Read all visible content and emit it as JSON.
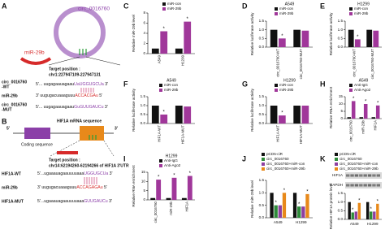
{
  "diagram_a": {
    "label": "A",
    "circ_name": "circ_0016760",
    "mirna": "miR-29b",
    "target_title": "Target position :",
    "target_pos": "chr1:227947109-227947131",
    "rows": [
      {
        "name": [
          "circ_0016760",
          "-WT"
        ],
        "seq": [
          "5'... uugagaauagaau",
          "UaUGGUGCUa",
          " 3'"
        ]
      },
      {
        "name": [
          "miR-29b"
        ],
        "seq": [
          "3' uugugacuaaaguuu",
          "ACCACGAu",
          " 5'"
        ]
      },
      {
        "name": [
          "circ_0016760",
          "-MUT"
        ],
        "seq": [
          "5'... uugagaauagaau",
          "GuGUUGAUCu",
          " 3'"
        ]
      }
    ]
  },
  "diagram_b": {
    "label": "B",
    "title": "HIF1A mRNA sequence",
    "five": "5'",
    "three": "3'",
    "coding": "Coding sequence",
    "target_title": "Target position :",
    "target_pos": "chr14:62194260-62194266 of HIF1A 3'UTR",
    "rows": [
      {
        "name": [
          "HIF1A-WT"
        ],
        "seq": [
          "5'...ugaaauagaauuuuaaa",
          "UGGUGCUa",
          " 3'"
        ]
      },
      {
        "name": [
          "miR-29b"
        ],
        "seq": [
          "3' uugugacuaaaguuu",
          "ACCAGAGAu",
          " 5'"
        ]
      },
      {
        "name": [
          "HIF1A-MUT"
        ],
        "seq": [
          "5'...ugaaauagaauuuuaaa",
          "GUUGAUCu",
          " 3'"
        ]
      }
    ]
  },
  "chart_data": [
    {
      "type": "bar",
      "label": "C",
      "ylabel": "Relative miR-29b level",
      "categories": [
        "A549",
        "H1299"
      ],
      "series": [
        {
          "name": "miR-con",
          "color": "#111111",
          "values": [
            1,
            1
          ],
          "significance": [
            null,
            null
          ]
        },
        {
          "name": "miR-29b",
          "color": "#a0379a",
          "values": [
            4.4,
            6.3
          ],
          "significance": [
            "*",
            "*"
          ]
        }
      ],
      "ylim": [
        0,
        8
      ],
      "yticks": [
        0,
        2,
        4,
        6,
        8
      ]
    },
    {
      "type": "bar",
      "label": "D",
      "title": "A549",
      "ylabel": "Relative luciferase activity",
      "categories": [
        "circ_0016760-WT",
        "circ_0016760-MUT"
      ],
      "series": [
        {
          "name": "miR-con",
          "color": "#111111",
          "values": [
            1,
            1
          ],
          "significance": [
            null,
            null
          ]
        },
        {
          "name": "miR-29b",
          "color": "#a0379a",
          "values": [
            0.5,
            0.95
          ],
          "significance": [
            "*",
            null
          ]
        }
      ],
      "ylim": [
        0,
        1.5
      ],
      "yticks": [
        {
          "value": 0,
          "label": "0.0"
        },
        0.5,
        {
          "value": 1,
          "label": "1.0"
        },
        1.5
      ]
    },
    {
      "type": "bar",
      "label": "E",
      "title": "H1299",
      "ylabel": "Relative luciferase activity",
      "categories": [
        "circ_0016760-WT",
        "circ_0016760-MUT"
      ],
      "series": [
        {
          "name": "miR-con",
          "color": "#111111",
          "values": [
            1,
            1
          ],
          "significance": [
            null,
            null
          ]
        },
        {
          "name": "miR-29b",
          "color": "#a0379a",
          "values": [
            0.45,
            0.95
          ],
          "significance": [
            "*",
            null
          ]
        }
      ],
      "ylim": [
        0,
        1.5
      ],
      "yticks": [
        {
          "value": 0,
          "label": "0.0"
        },
        0.5,
        {
          "value": 1,
          "label": "1.0"
        },
        1.5
      ]
    },
    {
      "type": "bar",
      "label": "F",
      "title": "A549",
      "ylabel": "Relative luciferase activity",
      "categories": [
        "HIF1A-WT",
        "HIF1A-MUT"
      ],
      "series": [
        {
          "name": "miR-con",
          "color": "#111111",
          "values": [
            1,
            1
          ],
          "significance": [
            null,
            null
          ]
        },
        {
          "name": "miR-29b",
          "color": "#a0379a",
          "values": [
            0.5,
            0.95
          ],
          "significance": [
            "*",
            null
          ]
        }
      ],
      "ylim": [
        0,
        1.5
      ],
      "yticks": [
        {
          "value": 0,
          "label": "0.0"
        },
        0.5,
        {
          "value": 1,
          "label": "1.0"
        },
        1.5
      ]
    },
    {
      "type": "bar",
      "label": "G",
      "title": "H1299",
      "ylabel": "Relative luciferase activity",
      "categories": [
        "HIF1A-WT",
        "HIF1A-MUT"
      ],
      "series": [
        {
          "name": "miR-con",
          "color": "#111111",
          "values": [
            1,
            1
          ],
          "significance": [
            null,
            null
          ]
        },
        {
          "name": "miR-29b",
          "color": "#a0379a",
          "values": [
            0.45,
            1
          ],
          "significance": [
            "*",
            null
          ]
        }
      ],
      "ylim": [
        0,
        1.5
      ],
      "yticks": [
        {
          "value": 0,
          "label": "0.0"
        },
        0.5,
        {
          "value": 1,
          "label": "1.0"
        },
        1.5
      ]
    },
    {
      "type": "bar",
      "label": "H",
      "title": "A549",
      "ylabel": "Relative RNA enrichment",
      "categories": [
        "circ_0016760",
        "miR-29b",
        "HIF1A"
      ],
      "series": [
        {
          "name": "Anti-IgG",
          "color": "#111111",
          "values": [
            1,
            1,
            1
          ],
          "significance": [
            null,
            null,
            null
          ]
        },
        {
          "name": "Anti-Ago2",
          "color": "#a0379a",
          "values": [
            12,
            10,
            9
          ],
          "significance": [
            "*",
            "*",
            "*"
          ]
        }
      ],
      "ylim": [
        0,
        15
      ],
      "yticks": [
        0,
        5,
        10,
        15
      ]
    },
    {
      "type": "bar",
      "label": "I",
      "title": "H1299",
      "ylabel": "Relative RNA enrichment",
      "categories": [
        "circ_0016760",
        "miR-29b",
        "HIF1A"
      ],
      "series": [
        {
          "name": "Anti-IgG",
          "color": "#111111",
          "values": [
            1,
            1,
            1
          ],
          "significance": [
            null,
            null,
            null
          ]
        },
        {
          "name": "Anti-Ago2",
          "color": "#a0379a",
          "values": [
            11,
            12,
            13
          ],
          "significance": [
            "*",
            "*",
            "*"
          ]
        }
      ],
      "ylim": [
        0,
        15
      ],
      "yticks": [
        0,
        5,
        10,
        15
      ]
    },
    {
      "type": "bar",
      "label": "J",
      "ylabel": "Relative miR-29b level",
      "categories": [
        "A549",
        "H1299"
      ],
      "series": [
        {
          "name": "pCD5-ciR",
          "color": "#111111",
          "values": [
            1,
            1
          ],
          "significance": [
            null,
            null
          ]
        },
        {
          "name": "circ_0016760",
          "color": "#2e8b3a",
          "values": [
            0.5,
            0.45
          ],
          "significance": [
            "*",
            "*"
          ]
        },
        {
          "name": "circ_0016760+miR-con",
          "color": "#8e3fa0",
          "values": [
            0.5,
            0.45
          ],
          "significance": [
            null,
            null
          ]
        },
        {
          "name": "circ_0016760+miR-29b",
          "color": "#e8891a",
          "values": [
            1,
            0.95
          ],
          "significance": [
            "*",
            "*"
          ]
        }
      ],
      "ylim": [
        0,
        1.5
      ],
      "yticks": [
        {
          "value": 0,
          "label": "0.0"
        },
        0.5,
        {
          "value": 1,
          "label": "1.0"
        },
        1.5
      ]
    },
    {
      "type": "bar",
      "label": "K",
      "ylabel": "Relative HIF1A protein level",
      "blot_labels": [
        "HIF1A",
        "GAPDH"
      ],
      "categories": [
        "A549",
        "H1299"
      ],
      "series": [
        {
          "name": "pCD5-ciR",
          "color": "#111111",
          "values": [
            1,
            1
          ],
          "significance": [
            null,
            null
          ]
        },
        {
          "name": "circ_0016760",
          "color": "#2e8b3a",
          "values": [
            0.4,
            0.45
          ],
          "significance": [
            "*",
            "*"
          ]
        },
        {
          "name": "circ_0016760+miR-con",
          "color": "#8e3fa0",
          "values": [
            0.45,
            0.45
          ],
          "significance": [
            null,
            null
          ]
        },
        {
          "name": "circ_0016760+miR-29b",
          "color": "#e8891a",
          "values": [
            0.95,
            0.9
          ],
          "significance": [
            "*",
            "*"
          ]
        }
      ],
      "ylim": [
        0,
        1.5
      ],
      "yticks": [
        {
          "value": 0,
          "label": "0.0"
        },
        0.5,
        {
          "value": 1,
          "label": "1.0"
        },
        1.5
      ]
    }
  ]
}
